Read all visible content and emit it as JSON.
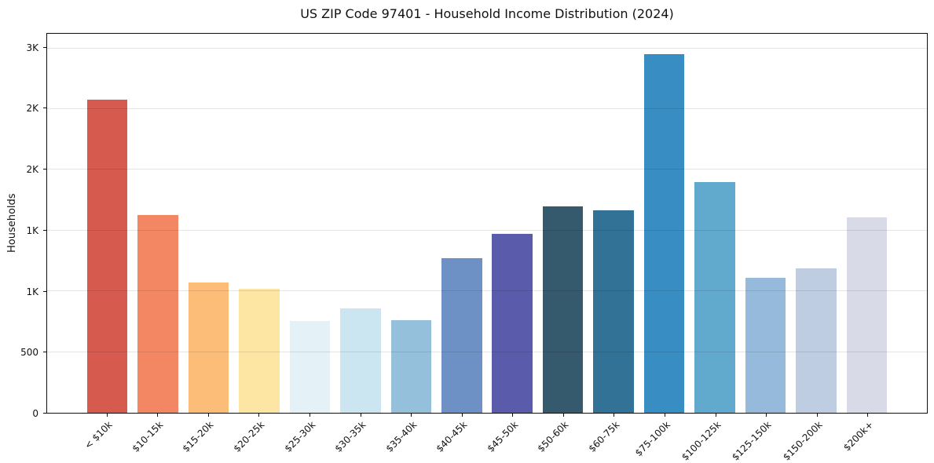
{
  "chart_data": {
    "type": "bar",
    "title": "US ZIP Code 97401 - Household Income Distribution (2024)",
    "xlabel": "",
    "ylabel": "Households",
    "categories": [
      "< $10k",
      "$10-15k",
      "$15-20k",
      "$20-25k",
      "$25-30k",
      "$30-35k",
      "$35-40k",
      "$40-45k",
      "$45-50k",
      "$50-60k",
      "$60-75k",
      "$75-100k",
      "$100-125k",
      "$125-150k",
      "$150-200k",
      "$200k+"
    ],
    "values": [
      2580,
      1630,
      1075,
      1020,
      755,
      860,
      760,
      1275,
      1470,
      1700,
      1665,
      2950,
      1900,
      1110,
      1190,
      1610
    ],
    "bar_colors": [
      "#d65a4d",
      "#f48763",
      "#fcbd78",
      "#fde5a4",
      "#e4f1f6",
      "#cbe6f1",
      "#94c0dc",
      "#6d91c4",
      "#5a5cab",
      "#35596d",
      "#317296",
      "#388ec3",
      "#62a9ce",
      "#96badb",
      "#becde2",
      "#d9dae8"
    ],
    "ylim": [
      0,
      3120
    ],
    "yticks": [
      {
        "value": 0,
        "label": "0"
      },
      {
        "value": 500,
        "label": "500"
      },
      {
        "value": 1000,
        "label": "1K"
      },
      {
        "value": 1500,
        "label": "1K"
      },
      {
        "value": 2000,
        "label": "2K"
      },
      {
        "value": 2500,
        "label": "2K"
      },
      {
        "value": 3000,
        "label": "3K"
      }
    ],
    "grid": "horizontal-only",
    "legend": "none",
    "x_tick_rotation_deg": 45,
    "spine_color": "#0d0d0d",
    "background_color": "#ffffff"
  }
}
